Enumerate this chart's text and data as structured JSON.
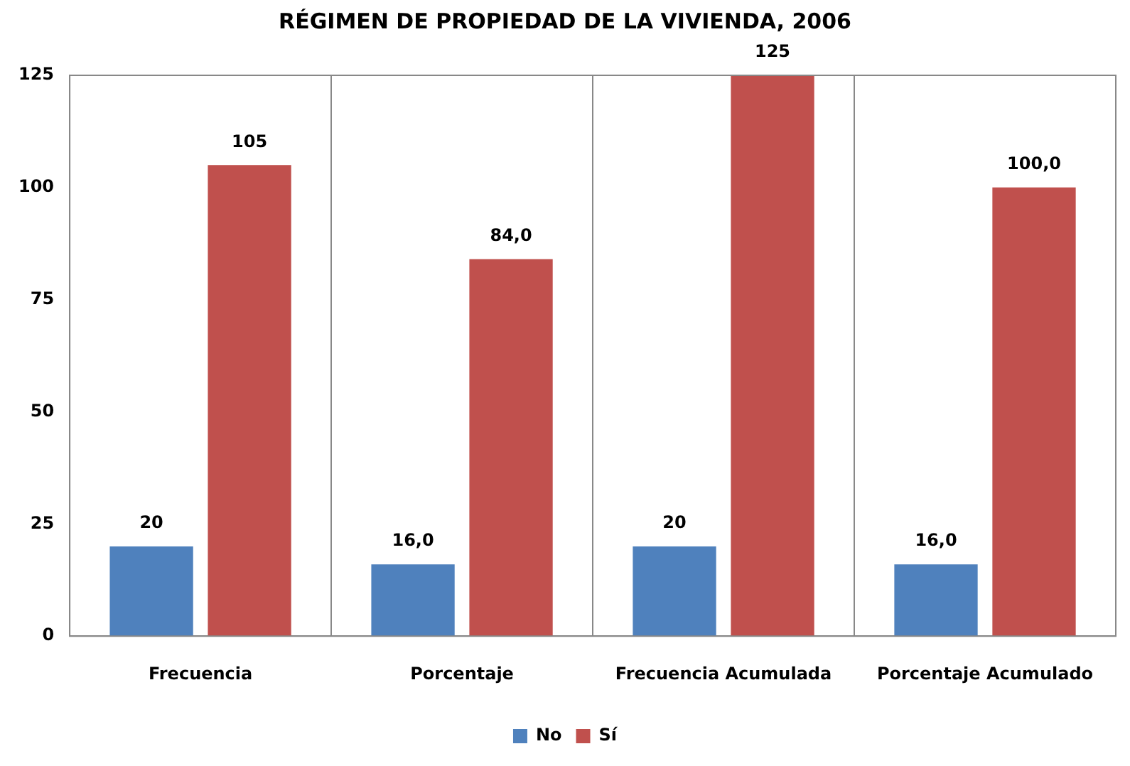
{
  "chart_data": {
    "type": "bar",
    "title": "RÉGIMEN DE PROPIEDAD DE LA VIVIENDA, 2006",
    "categories": [
      "Frecuencia",
      "Porcentaje",
      "Frecuencia Acumulada",
      "Porcentaje Acumulado"
    ],
    "series": [
      {
        "name": "No",
        "color": "#4f81bd",
        "values": [
          20,
          16,
          20,
          16
        ],
        "value_labels": [
          "20",
          "16,0",
          "20",
          "16,0"
        ]
      },
      {
        "name": "Sí",
        "color": "#c0504d",
        "values": [
          105,
          84,
          125,
          100
        ],
        "value_labels": [
          "105",
          "84,0",
          "125",
          "100,0"
        ]
      }
    ],
    "ylim": [
      0,
      125
    ],
    "yticks": [
      0,
      25,
      50,
      75,
      100,
      125
    ],
    "grid": "x",
    "legend": "bottom"
  }
}
